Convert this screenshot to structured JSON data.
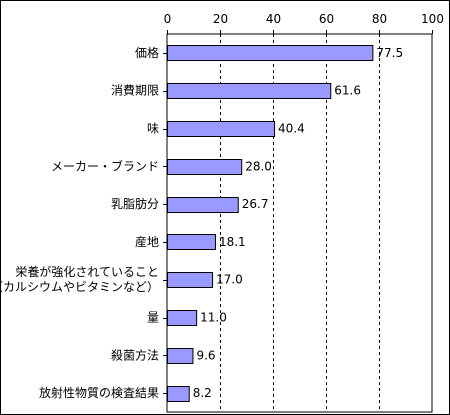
{
  "chart_data": {
    "type": "bar",
    "orientation": "horizontal",
    "title": "",
    "xlabel": "",
    "ylabel": "",
    "xlim": [
      0,
      100
    ],
    "x_ticks": [
      "0",
      "20",
      "40",
      "60",
      "80",
      "100"
    ],
    "grid": "vertical dashed",
    "legend": "none",
    "bar_color": "#9999ff",
    "bar_border_color": "#000000",
    "categories": [
      [
        "価格"
      ],
      [
        "消費期限"
      ],
      [
        "味"
      ],
      [
        "メーカー・ブランド"
      ],
      [
        "乳脂肪分"
      ],
      [
        "産地"
      ],
      [
        "栄養が強化されていること",
        "（カルシウムやビタミンなど）"
      ],
      [
        "量"
      ],
      [
        "殺菌方法"
      ],
      [
        "放射性物質の検査結果"
      ]
    ],
    "values": [
      77.5,
      61.6,
      40.4,
      28.0,
      26.7,
      18.1,
      17.0,
      11.0,
      9.6,
      8.2
    ],
    "value_labels": [
      "77.5",
      "61.6",
      "40.4",
      "28.0",
      "26.7",
      "18.1",
      "17.0",
      "11.0",
      "9.6",
      "8.2"
    ]
  }
}
